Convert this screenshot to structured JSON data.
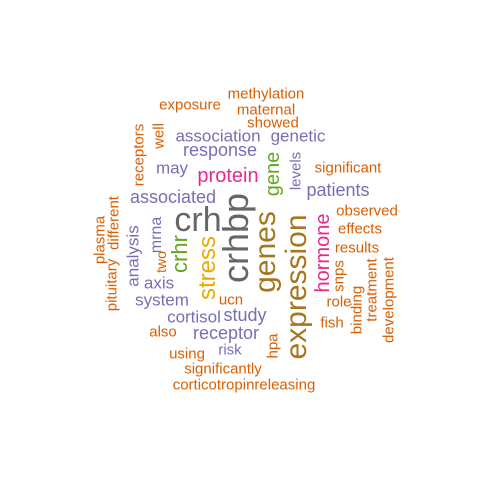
{
  "colors": {
    "orange": "#d95f02",
    "purple": "#7570b3",
    "magenta": "#e7298a",
    "green": "#66a61e",
    "gold": "#e6ab02",
    "brown": "#a6761d",
    "gray": "#666666"
  },
  "words": [
    {
      "text": "methylation",
      "color": "orange"
    },
    {
      "text": "exposure",
      "color": "orange"
    },
    {
      "text": "maternal",
      "color": "orange"
    },
    {
      "text": "showed",
      "color": "orange"
    },
    {
      "text": "well",
      "color": "orange"
    },
    {
      "text": "receptors",
      "color": "orange"
    },
    {
      "text": "association",
      "color": "purple"
    },
    {
      "text": "genetic",
      "color": "purple"
    },
    {
      "text": "response",
      "color": "purple"
    },
    {
      "text": "may",
      "color": "purple"
    },
    {
      "text": "protein",
      "color": "magenta"
    },
    {
      "text": "gene",
      "color": "green"
    },
    {
      "text": "levels",
      "color": "purple"
    },
    {
      "text": "significant",
      "color": "orange"
    },
    {
      "text": "associated",
      "color": "purple"
    },
    {
      "text": "patients",
      "color": "purple"
    },
    {
      "text": "plasma",
      "color": "orange"
    },
    {
      "text": "different",
      "color": "orange"
    },
    {
      "text": "mrna",
      "color": "purple"
    },
    {
      "text": "crh",
      "color": "gray"
    },
    {
      "text": "crhbp",
      "color": "gray"
    },
    {
      "text": "genes",
      "color": "brown"
    },
    {
      "text": "expression",
      "color": "brown"
    },
    {
      "text": "hormone",
      "color": "magenta"
    },
    {
      "text": "observed",
      "color": "orange"
    },
    {
      "text": "effects",
      "color": "orange"
    },
    {
      "text": "results",
      "color": "orange"
    },
    {
      "text": "analysis",
      "color": "purple"
    },
    {
      "text": "two",
      "color": "orange"
    },
    {
      "text": "crhr",
      "color": "green"
    },
    {
      "text": "stress",
      "color": "gold"
    },
    {
      "text": "pituitary",
      "color": "orange"
    },
    {
      "text": "snps",
      "color": "orange"
    },
    {
      "text": "axis",
      "color": "purple"
    },
    {
      "text": "system",
      "color": "purple"
    },
    {
      "text": "ucn",
      "color": "orange"
    },
    {
      "text": "role",
      "color": "orange"
    },
    {
      "text": "study",
      "color": "purple"
    },
    {
      "text": "cortisol",
      "color": "purple"
    },
    {
      "text": "treatment",
      "color": "orange"
    },
    {
      "text": "development",
      "color": "orange"
    },
    {
      "text": "binding",
      "color": "orange"
    },
    {
      "text": "fish",
      "color": "orange"
    },
    {
      "text": "also",
      "color": "orange"
    },
    {
      "text": "receptor",
      "color": "purple"
    },
    {
      "text": "hpa",
      "color": "orange"
    },
    {
      "text": "using",
      "color": "orange"
    },
    {
      "text": "risk",
      "color": "purple"
    },
    {
      "text": "significantly",
      "color": "orange"
    },
    {
      "text": "corticotropinreleasing",
      "color": "orange"
    }
  ]
}
